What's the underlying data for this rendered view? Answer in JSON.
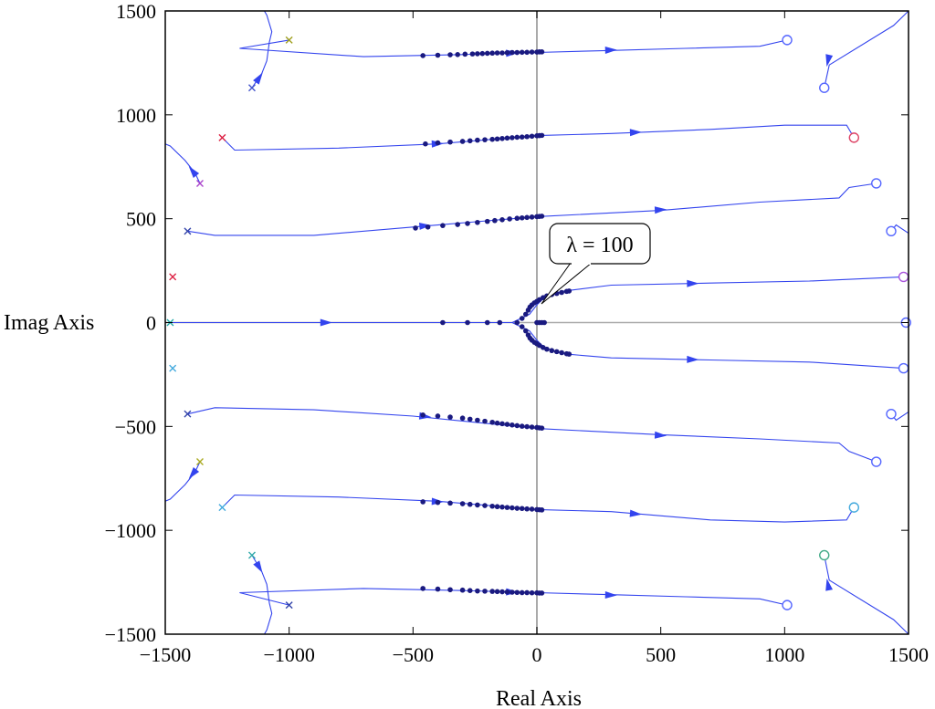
{
  "chart_data": {
    "type": "scatter",
    "title": "",
    "xlabel": "Real Axis",
    "ylabel": "Imag Axis",
    "xlim": [
      -1500,
      1500
    ],
    "ylim": [
      -1500,
      1500
    ],
    "xticks": [
      "-1500",
      "-1000",
      "-500",
      "0",
      "500",
      "1000",
      "1500"
    ],
    "yticks": [
      "1500",
      "1000",
      "500",
      "0",
      "-500",
      "-1000",
      "-1500"
    ],
    "grid": false,
    "annotation": {
      "text": "λ = 100",
      "x": 10,
      "y": 100
    },
    "colors": {
      "branch": "#3344ee",
      "dot": "#1a1a80",
      "axis_zero": "#aaaaaa",
      "zero_circle": "#5566ff"
    },
    "poles": [
      {
        "x": -1000,
        "y": 1360,
        "color": "#a0a020"
      },
      {
        "x": -1150,
        "y": 1130,
        "color": "#4455cc"
      },
      {
        "x": -1270,
        "y": 890,
        "color": "#dd2244"
      },
      {
        "x": -1360,
        "y": 670,
        "color": "#aa44cc"
      },
      {
        "x": -1410,
        "y": 440,
        "color": "#3344aa"
      },
      {
        "x": -1470,
        "y": 220,
        "color": "#dd2244"
      },
      {
        "x": -1480,
        "y": 0,
        "color": "#22aaaa"
      },
      {
        "x": -1470,
        "y": -220,
        "color": "#44aadd"
      },
      {
        "x": -1410,
        "y": -440,
        "color": "#3344aa"
      },
      {
        "x": -1360,
        "y": -670,
        "color": "#aaaa20"
      },
      {
        "x": -1270,
        "y": -890,
        "color": "#44aadd"
      },
      {
        "x": -1150,
        "y": -1120,
        "color": "#33aaaa"
      },
      {
        "x": -1000,
        "y": -1360,
        "color": "#3344aa"
      }
    ],
    "zeros": [
      {
        "x": 1010,
        "y": 1360,
        "color": "#5566ff"
      },
      {
        "x": 1160,
        "y": 1130,
        "color": "#5566ff"
      },
      {
        "x": 1280,
        "y": 890,
        "color": "#dd4466"
      },
      {
        "x": 1370,
        "y": 670,
        "color": "#5566ff"
      },
      {
        "x": 1430,
        "y": 440,
        "color": "#5566ff"
      },
      {
        "x": 1480,
        "y": 220,
        "color": "#aa55dd"
      },
      {
        "x": 1490,
        "y": 0,
        "color": "#5566ff"
      },
      {
        "x": 1480,
        "y": -220,
        "color": "#5566ff"
      },
      {
        "x": 1430,
        "y": -440,
        "color": "#5566ff"
      },
      {
        "x": 1370,
        "y": -670,
        "color": "#5566ff"
      },
      {
        "x": 1280,
        "y": -890,
        "color": "#44aadd"
      },
      {
        "x": 1160,
        "y": -1120,
        "color": "#44aa88"
      },
      {
        "x": 1010,
        "y": -1360,
        "color": "#5566ff"
      }
    ],
    "branches": [
      {
        "points": [
          [
            -1000,
            1360
          ],
          [
            -1200,
            1320
          ],
          [
            -700,
            1280
          ],
          [
            -300,
            1290
          ],
          [
            0,
            1300
          ],
          [
            300,
            1310
          ],
          [
            600,
            1320
          ],
          [
            900,
            1330
          ],
          [
            1010,
            1360
          ]
        ],
        "arrows": [
          [
            -100,
            1297
          ],
          [
            300,
            1312
          ]
        ]
      },
      {
        "points": [
          [
            -1270,
            890
          ],
          [
            -1220,
            830
          ],
          [
            -800,
            840
          ],
          [
            -400,
            860
          ],
          [
            0,
            900
          ],
          [
            300,
            910
          ],
          [
            700,
            930
          ],
          [
            1000,
            950
          ],
          [
            1250,
            950
          ],
          [
            1280,
            890
          ]
        ],
        "arrows": [
          [
            -400,
            861
          ],
          [
            400,
            916
          ]
        ]
      },
      {
        "points": [
          [
            -1410,
            440
          ],
          [
            -1300,
            420
          ],
          [
            -900,
            420
          ],
          [
            -500,
            460
          ],
          [
            0,
            510
          ],
          [
            500,
            540
          ],
          [
            900,
            580
          ],
          [
            1220,
            600
          ],
          [
            1260,
            650
          ],
          [
            1370,
            670
          ]
        ],
        "arrows": [
          [
            -450,
            466
          ],
          [
            500,
            543
          ]
        ]
      },
      {
        "points": [
          [
            -1480,
            0
          ],
          [
            -700,
            0
          ],
          [
            -300,
            0
          ],
          [
            -100,
            0
          ],
          [
            -30,
            40
          ],
          [
            0,
            85
          ],
          [
            30,
            120
          ],
          [
            100,
            150
          ],
          [
            300,
            180
          ],
          [
            700,
            190
          ],
          [
            1100,
            200
          ],
          [
            1480,
            220
          ]
        ],
        "arrows": [
          [
            -850,
            0
          ],
          [
            630,
            188
          ]
        ]
      },
      {
        "points": [
          [
            -1480,
            0
          ],
          [
            -300,
            0
          ],
          [
            -100,
            0
          ],
          [
            -30,
            -40
          ],
          [
            0,
            -85
          ],
          [
            30,
            -120
          ],
          [
            100,
            -150
          ],
          [
            300,
            -170
          ],
          [
            700,
            -180
          ],
          [
            1100,
            -190
          ],
          [
            1480,
            -220
          ]
        ],
        "arrows": [
          [
            630,
            -178
          ]
        ]
      },
      {
        "points": [
          [
            -1410,
            -440
          ],
          [
            -1300,
            -410
          ],
          [
            -900,
            -420
          ],
          [
            -500,
            -450
          ],
          [
            0,
            -510
          ],
          [
            500,
            -540
          ],
          [
            900,
            -560
          ],
          [
            1220,
            -580
          ],
          [
            1260,
            -620
          ],
          [
            1370,
            -670
          ]
        ],
        "arrows": [
          [
            -450,
            -452
          ],
          [
            500,
            -543
          ]
        ]
      },
      {
        "points": [
          [
            -1270,
            -890
          ],
          [
            -1220,
            -830
          ],
          [
            -800,
            -840
          ],
          [
            -400,
            -860
          ],
          [
            0,
            -900
          ],
          [
            300,
            -910
          ],
          [
            700,
            -950
          ],
          [
            1000,
            -960
          ],
          [
            1250,
            -950
          ],
          [
            1280,
            -890
          ]
        ],
        "arrows": [
          [
            -400,
            -862
          ],
          [
            400,
            -921
          ]
        ]
      },
      {
        "points": [
          [
            -1000,
            -1360
          ],
          [
            -1200,
            -1300
          ],
          [
            -700,
            -1280
          ],
          [
            -300,
            -1290
          ],
          [
            0,
            -1300
          ],
          [
            300,
            -1310
          ],
          [
            600,
            -1320
          ],
          [
            900,
            -1330
          ],
          [
            1010,
            -1360
          ]
        ],
        "arrows": [
          [
            -100,
            -1297
          ],
          [
            300,
            -1312
          ]
        ]
      },
      {
        "points": [
          [
            -1150,
            1130
          ],
          [
            -1110,
            1200
          ],
          [
            -1090,
            1260
          ],
          [
            -1080,
            1350
          ],
          [
            -1070,
            1400
          ],
          [
            -1090,
            1480
          ],
          [
            -1100,
            1500
          ]
        ],
        "arrows": [
          [
            -1120,
            1180
          ]
        ]
      },
      {
        "points": [
          [
            -1360,
            670
          ],
          [
            -1380,
            720
          ],
          [
            -1420,
            780
          ],
          [
            -1480,
            850
          ],
          [
            -1500,
            860
          ]
        ],
        "arrows": [
          [
            -1390,
            730
          ]
        ]
      },
      {
        "points": [
          [
            -1360,
            -670
          ],
          [
            -1380,
            -720
          ],
          [
            -1420,
            -780
          ],
          [
            -1480,
            -850
          ],
          [
            -1500,
            -860
          ]
        ],
        "arrows": [
          [
            -1390,
            -730
          ]
        ]
      },
      {
        "points": [
          [
            -1150,
            -1120
          ],
          [
            -1110,
            -1200
          ],
          [
            -1090,
            -1260
          ],
          [
            -1080,
            -1350
          ],
          [
            -1070,
            -1400
          ],
          [
            -1090,
            -1480
          ],
          [
            -1100,
            -1500
          ]
        ],
        "arrows": [
          [
            -1120,
            -1180
          ]
        ]
      },
      {
        "points": [
          [
            1500,
            1500
          ],
          [
            1440,
            1430
          ],
          [
            1180,
            1240
          ],
          [
            1160,
            1130
          ]
        ],
        "arrows": [
          [
            1175,
            1260
          ]
        ]
      },
      {
        "points": [
          [
            1500,
            430
          ],
          [
            1450,
            470
          ],
          [
            1430,
            440
          ]
        ],
        "arrows": []
      },
      {
        "points": [
          [
            1500,
            -430
          ],
          [
            1450,
            -470
          ],
          [
            1430,
            -440
          ]
        ],
        "arrows": []
      },
      {
        "points": [
          [
            1500,
            -1500
          ],
          [
            1440,
            -1430
          ],
          [
            1180,
            -1240
          ],
          [
            1160,
            -1120
          ]
        ],
        "arrows": [
          [
            1175,
            -1260
          ]
        ]
      }
    ],
    "dot_series": [
      {
        "name": "",
        "x": [
          -460,
          -400,
          -350,
          -320,
          -290,
          -260,
          -240,
          -220,
          -200,
          -180,
          -160,
          -140,
          -120,
          -100,
          -80,
          -60,
          -40,
          -20,
          0,
          10,
          20
        ],
        "y": [
          1285,
          1287,
          1289,
          1290,
          1292,
          1293,
          1294,
          1295,
          1296,
          1297,
          1298,
          1298,
          1299,
          1300,
          1300,
          1301,
          1301,
          1302,
          1302,
          1303,
          1303
        ]
      },
      {
        "name": "",
        "x": [
          -450,
          -400,
          -350,
          -300,
          -270,
          -240,
          -210,
          -180,
          -160,
          -140,
          -120,
          -100,
          -80,
          -60,
          -40,
          -20,
          0,
          10,
          20
        ],
        "y": [
          860,
          865,
          869,
          872,
          875,
          878,
          880,
          882,
          884,
          886,
          888,
          890,
          892,
          893,
          895,
          897,
          899,
          900,
          901
        ]
      },
      {
        "name": "",
        "x": [
          -490,
          -440,
          -380,
          -320,
          -280,
          -240,
          -200,
          -170,
          -140,
          -110,
          -80,
          -60,
          -40,
          -20,
          0,
          10,
          20
        ],
        "y": [
          455,
          460,
          467,
          472,
          477,
          482,
          487,
          491,
          495,
          499,
          502,
          504,
          506,
          508,
          510,
          511,
          512
        ]
      },
      {
        "name": "",
        "x": [
          -460,
          -400,
          -350,
          -300,
          -270,
          -240,
          -210,
          -180,
          -160,
          -140,
          -120,
          -100,
          -80,
          -60,
          -40,
          -20,
          0,
          10,
          20
        ],
        "y": [
          -445,
          -450,
          -455,
          -460,
          -465,
          -470,
          -475,
          -480,
          -484,
          -487,
          -490,
          -493,
          -496,
          -499,
          -501,
          -503,
          -505,
          -507,
          -508
        ]
      },
      {
        "name": "",
        "x": [
          -460,
          -400,
          -350,
          -300,
          -270,
          -240,
          -210,
          -180,
          -160,
          -140,
          -120,
          -100,
          -80,
          -60,
          -40,
          -20,
          0,
          10,
          20
        ],
        "y": [
          -863,
          -866,
          -869,
          -872,
          -875,
          -878,
          -881,
          -884,
          -886,
          -888,
          -890,
          -892,
          -894,
          -895,
          -897,
          -898,
          -900,
          -901,
          -902
        ]
      },
      {
        "name": "",
        "x": [
          -460,
          -400,
          -350,
          -300,
          -270,
          -240,
          -210,
          -180,
          -160,
          -140,
          -120,
          -100,
          -80,
          -60,
          -40,
          -20,
          0,
          10,
          20
        ],
        "y": [
          -1280,
          -1283,
          -1286,
          -1288,
          -1290,
          -1292,
          -1293,
          -1294,
          -1295,
          -1296,
          -1297,
          -1298,
          -1299,
          -1300,
          -1300,
          -1301,
          -1301,
          -1302,
          -1302
        ]
      },
      {
        "name": "",
        "x": [
          -380,
          -280,
          -200,
          -150,
          -80,
          -60,
          -45,
          -35,
          -28,
          -20,
          -10,
          0,
          10,
          25,
          40,
          60,
          80,
          100,
          120,
          130
        ],
        "y": [
          0,
          0,
          0,
          0,
          0,
          20,
          40,
          60,
          75,
          85,
          95,
          102,
          110,
          120,
          128,
          135,
          140,
          145,
          150,
          152
        ]
      },
      {
        "name": "",
        "x": [
          -60,
          -45,
          -35,
          -28,
          -20,
          -10,
          0,
          10,
          25,
          40,
          60,
          80,
          100,
          120,
          130
        ],
        "y": [
          -20,
          -40,
          -60,
          -75,
          -85,
          -95,
          -102,
          -110,
          -120,
          -128,
          -135,
          -140,
          -145,
          -150,
          -152
        ]
      },
      {
        "name": "",
        "x": [
          0,
          10,
          20,
          30
        ],
        "y": [
          0,
          0,
          0,
          0
        ]
      }
    ]
  }
}
